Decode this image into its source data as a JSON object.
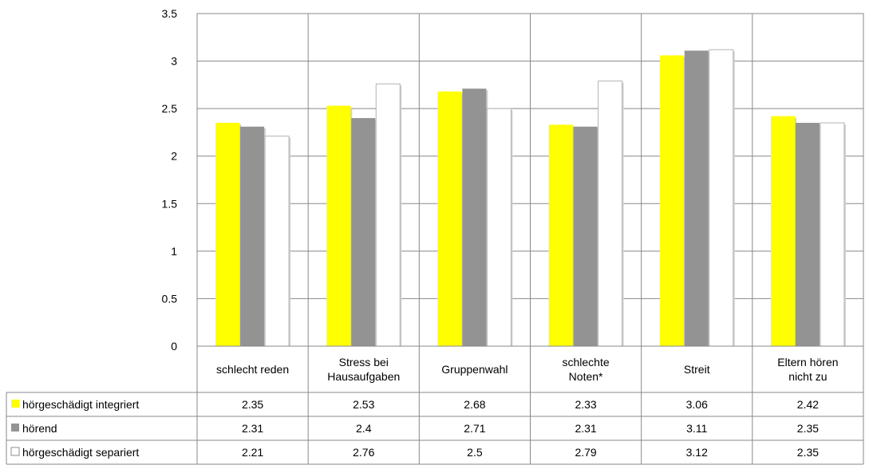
{
  "chart_data": {
    "type": "bar",
    "categories": [
      [
        "schlecht reden"
      ],
      [
        "Stress bei",
        "Hausaufgaben"
      ],
      [
        "Gruppenwahl"
      ],
      [
        "schlechte",
        "Noten*"
      ],
      [
        "Streit"
      ],
      [
        "Eltern hören",
        "nicht zu"
      ]
    ],
    "series": [
      {
        "name": "hörgeschädigt integriert",
        "color": "#ffff00",
        "values": [
          2.35,
          2.53,
          2.68,
          2.33,
          3.06,
          2.42
        ]
      },
      {
        "name": "hörend",
        "color": "#939393",
        "values": [
          2.31,
          2.4,
          2.71,
          2.31,
          3.11,
          2.35
        ]
      },
      {
        "name": "hörgeschädigt separiert",
        "color": "#ffffff",
        "values": [
          2.21,
          2.76,
          2.5,
          2.79,
          3.12,
          2.35
        ]
      }
    ],
    "data_table_values": [
      [
        "2.35",
        "2.53",
        "2.68",
        "2.33",
        "3.06",
        "2.42"
      ],
      [
        "2.31",
        "2.4",
        "2.71",
        "2.31",
        "3.11",
        "2.35"
      ],
      [
        "2.21",
        "2.76",
        "2.5",
        "2.79",
        "3.12",
        "2.35"
      ]
    ],
    "yticks": [
      "0",
      "0.5",
      "1",
      "1.5",
      "2",
      "2.5",
      "3",
      "3.5"
    ],
    "ylim": [
      0,
      3.5
    ],
    "grid": true,
    "legend": "data-table-left",
    "title": "",
    "xlabel": "",
    "ylabel": ""
  }
}
